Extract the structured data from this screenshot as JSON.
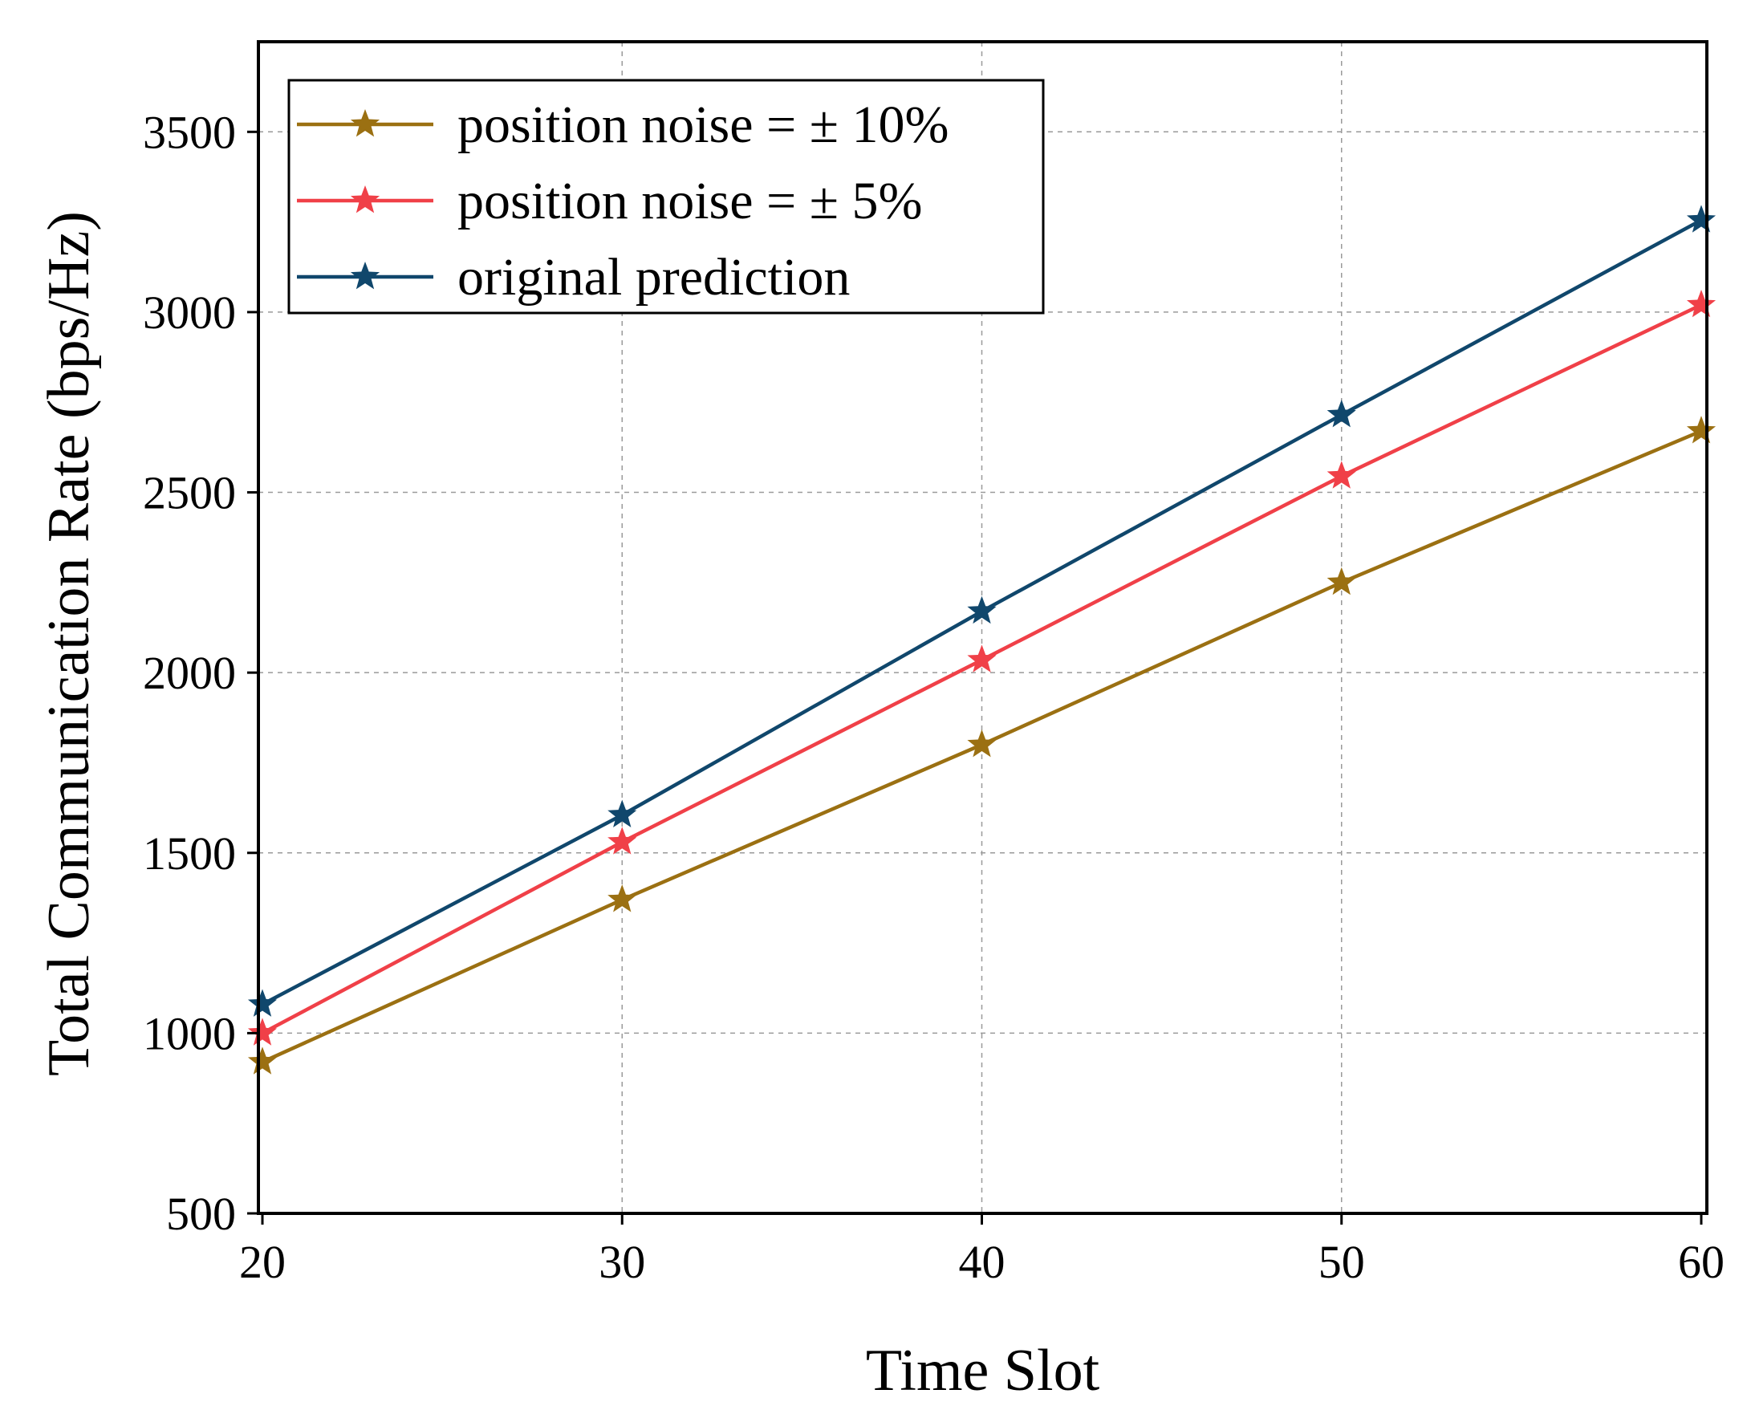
{
  "chart_data": {
    "type": "line",
    "title": "",
    "xlabel": "Time Slot",
    "ylabel": "Total Communication Rate (bps/Hz)",
    "x": [
      20,
      30,
      40,
      50,
      60
    ],
    "xlim": [
      20,
      60
    ],
    "ylim": [
      500,
      3750
    ],
    "xticks": [
      20,
      30,
      40,
      50,
      60
    ],
    "yticks": [
      500,
      1000,
      1500,
      2000,
      2500,
      3000,
      3500
    ],
    "grid": true,
    "marker": "star",
    "legend_position": "top-left",
    "series": [
      {
        "name": "position noise = ± 10%",
        "color": "#9b7012",
        "values": [
          920,
          1370,
          1800,
          2250,
          2670
        ]
      },
      {
        "name": "position noise = ± 5%",
        "color": "#f04048",
        "values": [
          1000,
          1530,
          2035,
          2545,
          3020
        ]
      },
      {
        "name": "original prediction",
        "color": "#10476c",
        "values": [
          1080,
          1605,
          2170,
          2715,
          3255
        ]
      }
    ]
  }
}
